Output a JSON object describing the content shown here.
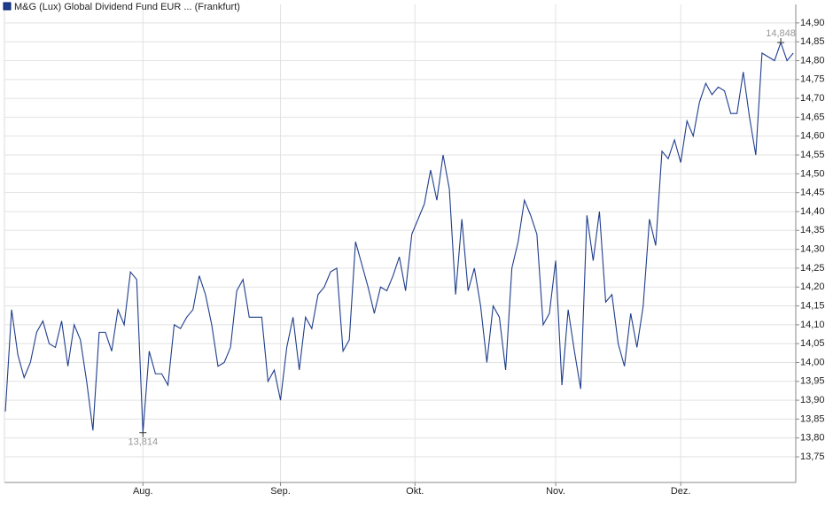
{
  "chart_data": {
    "type": "line",
    "series": [
      {
        "name": "M&G (Lux) Global Dividend Fund EUR ... (Frankfurt)",
        "color": "#1f3d8c",
        "values": [
          13.87,
          14.14,
          14.02,
          13.96,
          14.0,
          14.08,
          14.11,
          14.05,
          14.04,
          14.11,
          13.99,
          14.1,
          14.06,
          13.95,
          13.82,
          14.08,
          14.08,
          14.03,
          14.14,
          14.1,
          14.24,
          14.22,
          13.814,
          14.03,
          13.97,
          13.97,
          13.94,
          14.1,
          14.09,
          14.12,
          14.14,
          14.23,
          14.18,
          14.1,
          13.99,
          14.0,
          14.04,
          14.19,
          14.22,
          14.12,
          14.12,
          14.12,
          13.95,
          13.98,
          13.9,
          14.04,
          14.12,
          13.98,
          14.12,
          14.09,
          14.18,
          14.2,
          14.24,
          14.25,
          14.03,
          14.06,
          14.32,
          14.26,
          14.2,
          14.13,
          14.2,
          14.19,
          14.23,
          14.28,
          14.19,
          14.34,
          14.38,
          14.42,
          14.51,
          14.43,
          14.55,
          14.46,
          14.18,
          14.38,
          14.19,
          14.25,
          14.15,
          14.0,
          14.15,
          14.12,
          13.98,
          14.25,
          14.32,
          14.43,
          14.39,
          14.34,
          14.1,
          14.13,
          14.27,
          13.94,
          14.14,
          14.03,
          13.93,
          14.39,
          14.27,
          14.4,
          14.16,
          14.18,
          14.05,
          13.99,
          14.13,
          14.04,
          14.15,
          14.38,
          14.31,
          14.56,
          14.54,
          14.59,
          14.53,
          14.64,
          14.6,
          14.69,
          14.74,
          14.71,
          14.73,
          14.72,
          14.66,
          14.66,
          14.77,
          14.65,
          14.55,
          14.82,
          14.81,
          14.8,
          14.848,
          14.8,
          14.82
        ]
      }
    ],
    "xlim": [
      -0.15,
      126.4
    ],
    "xticks": [
      {
        "value": 22,
        "label": "Aug."
      },
      {
        "value": 44,
        "label": "Sep."
      },
      {
        "value": 65.5,
        "label": "Okt."
      },
      {
        "value": 88,
        "label": "Nov."
      },
      {
        "value": 108,
        "label": "Dez."
      }
    ],
    "ylim": [
      13.682,
      14.949
    ],
    "yticks": [
      {
        "value": 13.75,
        "label": "13,75"
      },
      {
        "value": 13.8,
        "label": "13,80"
      },
      {
        "value": 13.85,
        "label": "13,85"
      },
      {
        "value": 13.9,
        "label": "13,90"
      },
      {
        "value": 13.95,
        "label": "13,95"
      },
      {
        "value": 14.0,
        "label": "14,00"
      },
      {
        "value": 14.05,
        "label": "14,05"
      },
      {
        "value": 14.1,
        "label": "14,10"
      },
      {
        "value": 14.15,
        "label": "14,15"
      },
      {
        "value": 14.2,
        "label": "14,20"
      },
      {
        "value": 14.25,
        "label": "14,25"
      },
      {
        "value": 14.3,
        "label": "14,30"
      },
      {
        "value": 14.35,
        "label": "14,35"
      },
      {
        "value": 14.4,
        "label": "14,40"
      },
      {
        "value": 14.45,
        "label": "14,45"
      },
      {
        "value": 14.5,
        "label": "14,50"
      },
      {
        "value": 14.55,
        "label": "14,55"
      },
      {
        "value": 14.6,
        "label": "14,60"
      },
      {
        "value": 14.65,
        "label": "14,65"
      },
      {
        "value": 14.7,
        "label": "14,70"
      },
      {
        "value": 14.75,
        "label": "14,75"
      },
      {
        "value": 14.8,
        "label": "14,80"
      },
      {
        "value": 14.85,
        "label": "14,85"
      },
      {
        "value": 14.9,
        "label": "14,90"
      }
    ],
    "grid": true,
    "legend": "top-left",
    "annotations": [
      {
        "x": 124,
        "value": 14.848,
        "label": "14,848",
        "position": "above"
      },
      {
        "x": 22,
        "value": 13.814,
        "label": "13,814",
        "position": "below"
      }
    ]
  }
}
